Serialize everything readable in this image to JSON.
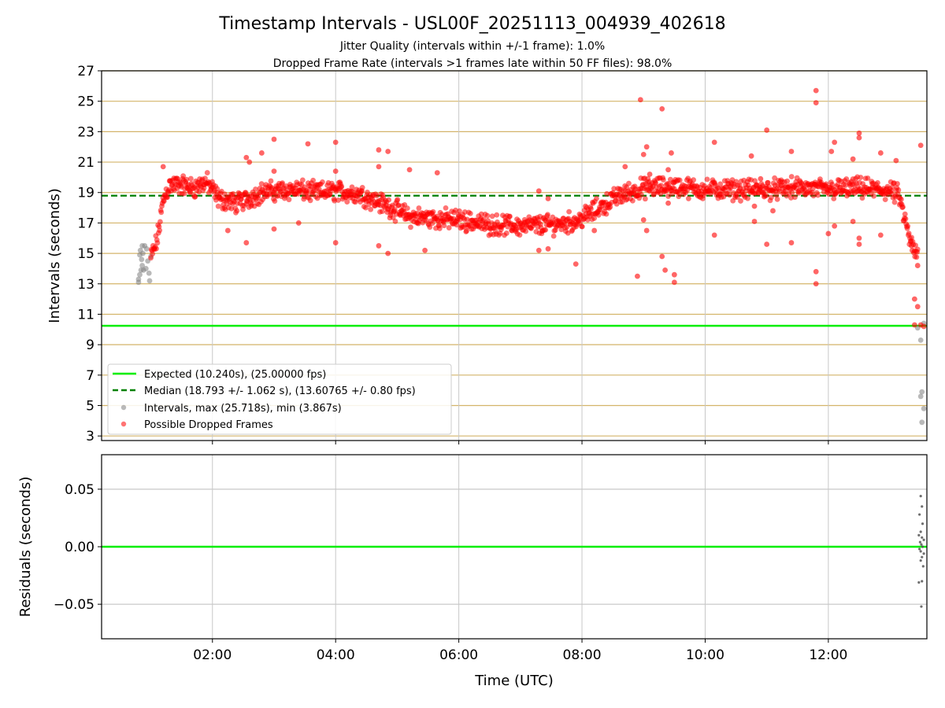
{
  "colors": {
    "expected": "#00ee00",
    "median": "#008000",
    "dropped": "#ff0000",
    "normal": "#808080",
    "hgrid_top": "#d4b46a",
    "vgrid": "#c8c8c8",
    "hgrid_bottom": "#c8c8c8",
    "residual_dots": "#555555"
  },
  "chart_data": [
    {
      "type": "scatter",
      "title": "Timestamp Intervals - USL00F_20251113_004939_402618",
      "subtitle_lines": [
        "Jitter Quality (intervals within +/-1 frame): 1.0%",
        "Dropped Frame Rate (intervals >1 frames late within 50 FF files): 98.0%"
      ],
      "ylabel": "Intervals (seconds)",
      "xlim_hours": [
        0.2,
        13.6
      ],
      "ylim": [
        2.7,
        27
      ],
      "yticks": [
        3,
        5,
        7,
        9,
        11,
        13,
        15,
        17,
        19,
        21,
        23,
        25,
        27
      ],
      "ytick_labels": [
        "3",
        "5",
        "7",
        "9",
        "11",
        "13",
        "15",
        "17",
        "19",
        "21",
        "23",
        "25",
        "27"
      ],
      "xticks_hours": [
        2,
        4,
        6,
        8,
        10,
        12
      ],
      "expected_interval": 10.24,
      "median_interval": 18.793,
      "dropped_trend": [
        [
          1.0,
          14.7
        ],
        [
          1.1,
          15.8
        ],
        [
          1.2,
          18.5
        ],
        [
          1.3,
          19.5
        ],
        [
          1.5,
          19.5
        ],
        [
          1.7,
          19.3
        ],
        [
          1.9,
          19.7
        ],
        [
          2.1,
          18.6
        ],
        [
          2.4,
          18.3
        ],
        [
          2.8,
          19.0
        ],
        [
          3.3,
          19.2
        ],
        [
          3.7,
          19.0
        ],
        [
          4.0,
          19.1
        ],
        [
          4.4,
          18.9
        ],
        [
          4.8,
          18.2
        ],
        [
          5.2,
          17.4
        ],
        [
          5.6,
          17.3
        ],
        [
          6.0,
          17.2
        ],
        [
          6.5,
          16.9
        ],
        [
          7.0,
          16.8
        ],
        [
          7.5,
          16.9
        ],
        [
          7.9,
          17.1
        ],
        [
          8.2,
          17.8
        ],
        [
          8.6,
          18.8
        ],
        [
          9.0,
          19.3
        ],
        [
          9.5,
          19.4
        ],
        [
          10.0,
          19.2
        ],
        [
          10.5,
          19.2
        ],
        [
          11.0,
          19.2
        ],
        [
          11.5,
          19.3
        ],
        [
          12.0,
          19.2
        ],
        [
          12.5,
          19.3
        ],
        [
          13.0,
          19.1
        ],
        [
          13.15,
          18.8
        ],
        [
          13.25,
          17.0
        ],
        [
          13.35,
          15.5
        ],
        [
          13.45,
          14.8
        ]
      ],
      "dropped_outliers": [
        [
          1.2,
          20.7
        ],
        [
          2.55,
          21.3
        ],
        [
          2.6,
          21.0
        ],
        [
          3.0,
          22.5
        ],
        [
          3.0,
          20.4
        ],
        [
          2.8,
          21.6
        ],
        [
          3.55,
          22.2
        ],
        [
          4.0,
          22.3
        ],
        [
          4.0,
          20.4
        ],
        [
          4.7,
          21.8
        ],
        [
          4.85,
          21.7
        ],
        [
          4.7,
          20.7
        ],
        [
          4.85,
          15.0
        ],
        [
          4.7,
          15.5
        ],
        [
          4.0,
          15.7
        ],
        [
          2.55,
          15.7
        ],
        [
          2.25,
          16.5
        ],
        [
          3.0,
          16.6
        ],
        [
          3.4,
          17.0
        ],
        [
          5.45,
          15.2
        ],
        [
          5.2,
          20.5
        ],
        [
          5.65,
          20.3
        ],
        [
          7.3,
          19.1
        ],
        [
          7.3,
          15.2
        ],
        [
          7.45,
          15.3
        ],
        [
          7.45,
          18.6
        ],
        [
          7.9,
          14.3
        ],
        [
          8.2,
          16.5
        ],
        [
          8.7,
          20.7
        ],
        [
          8.9,
          13.5
        ],
        [
          8.95,
          25.1
        ],
        [
          9.05,
          22.0
        ],
        [
          9.0,
          21.5
        ],
        [
          9.0,
          17.2
        ],
        [
          9.05,
          16.5
        ],
        [
          9.1,
          20.2
        ],
        [
          9.3,
          24.5
        ],
        [
          9.3,
          14.8
        ],
        [
          9.35,
          13.9
        ],
        [
          9.5,
          13.1
        ],
        [
          9.5,
          13.6
        ],
        [
          9.45,
          21.6
        ],
        [
          9.4,
          20.5
        ],
        [
          9.4,
          18.3
        ],
        [
          10.15,
          22.3
        ],
        [
          10.15,
          16.2
        ],
        [
          10.75,
          21.4
        ],
        [
          10.8,
          17.1
        ],
        [
          10.8,
          18.1
        ],
        [
          10.9,
          19.9
        ],
        [
          11.0,
          23.1
        ],
        [
          11.1,
          17.8
        ],
        [
          11.0,
          15.6
        ],
        [
          11.4,
          21.7
        ],
        [
          11.4,
          15.7
        ],
        [
          11.8,
          25.7
        ],
        [
          11.8,
          24.9
        ],
        [
          11.8,
          13.8
        ],
        [
          11.8,
          13.0
        ],
        [
          12.05,
          21.7
        ],
        [
          12.1,
          22.3
        ],
        [
          12.1,
          16.8
        ],
        [
          12.0,
          16.3
        ],
        [
          12.4,
          21.2
        ],
        [
          12.4,
          17.1
        ],
        [
          12.5,
          22.9
        ],
        [
          12.5,
          22.6
        ],
        [
          12.5,
          16.0
        ],
        [
          12.5,
          15.6
        ],
        [
          12.85,
          16.2
        ],
        [
          12.85,
          21.6
        ],
        [
          13.1,
          21.1
        ],
        [
          13.35,
          15.5
        ],
        [
          13.5,
          22.1
        ],
        [
          13.45,
          14.2
        ],
        [
          13.4,
          12.0
        ],
        [
          13.45,
          11.5
        ],
        [
          13.4,
          10.3
        ],
        [
          13.5,
          10.3
        ],
        [
          13.55,
          10.2
        ]
      ],
      "normal_points": [
        [
          0.8,
          13.1
        ],
        [
          0.8,
          13.3
        ],
        [
          0.82,
          13.6
        ],
        [
          0.84,
          13.9
        ],
        [
          0.86,
          14.2
        ],
        [
          0.85,
          14.6
        ],
        [
          0.82,
          14.9
        ],
        [
          0.83,
          15.2
        ],
        [
          0.86,
          15.5
        ],
        [
          0.9,
          15.5
        ],
        [
          0.93,
          15.3
        ],
        [
          0.95,
          14.5
        ],
        [
          0.97,
          13.7
        ],
        [
          0.98,
          13.2
        ],
        [
          0.88,
          13.9
        ],
        [
          0.92,
          14.0
        ],
        [
          1.0,
          14.8
        ],
        [
          0.87,
          15.0
        ],
        [
          13.45,
          10.1
        ],
        [
          13.5,
          9.3
        ],
        [
          13.52,
          5.9
        ],
        [
          13.5,
          5.6
        ],
        [
          13.55,
          4.8
        ],
        [
          13.52,
          3.9
        ],
        [
          13.55,
          10.4
        ]
      ],
      "legend": {
        "placement": "lower-left",
        "entries": [
          "Expected (10.240s), (25.00000 fps)",
          "Median (18.793 +/- 1.062 s), (13.60765 +/- 0.80 fps)",
          "Intervals, max (25.718s), min (3.867s)",
          "Possible Dropped Frames"
        ]
      }
    },
    {
      "type": "scatter",
      "ylabel": "Residuals (seconds)",
      "xlabel": "Time (UTC)",
      "xlim_hours": [
        0.2,
        13.6
      ],
      "ylim": [
        -0.08,
        0.08
      ],
      "yticks": [
        -0.05,
        0,
        0.05
      ],
      "ytick_labels": [
        "−0.05",
        "0.00",
        "0.05"
      ],
      "xticks_hours": [
        2,
        4,
        6,
        8,
        10,
        12
      ],
      "xtick_labels": [
        "02:00",
        "04:00",
        "06:00",
        "08:00",
        "10:00",
        "12:00"
      ],
      "zero_line": 0,
      "residuals": [
        [
          13.5,
          0.044
        ],
        [
          13.52,
          0.035
        ],
        [
          13.48,
          0.028
        ],
        [
          13.53,
          0.02
        ],
        [
          13.5,
          0.013
        ],
        [
          13.47,
          0.01
        ],
        [
          13.52,
          0.008
        ],
        [
          13.55,
          0.006
        ],
        [
          13.49,
          0.004
        ],
        [
          13.51,
          0.002
        ],
        [
          13.53,
          0.0
        ],
        [
          13.48,
          -0.002
        ],
        [
          13.5,
          -0.004
        ],
        [
          13.55,
          -0.006
        ],
        [
          13.52,
          -0.009
        ],
        [
          13.5,
          -0.012
        ],
        [
          13.54,
          -0.017
        ],
        [
          13.47,
          -0.031
        ],
        [
          13.52,
          -0.03
        ],
        [
          13.51,
          -0.052
        ]
      ]
    }
  ]
}
